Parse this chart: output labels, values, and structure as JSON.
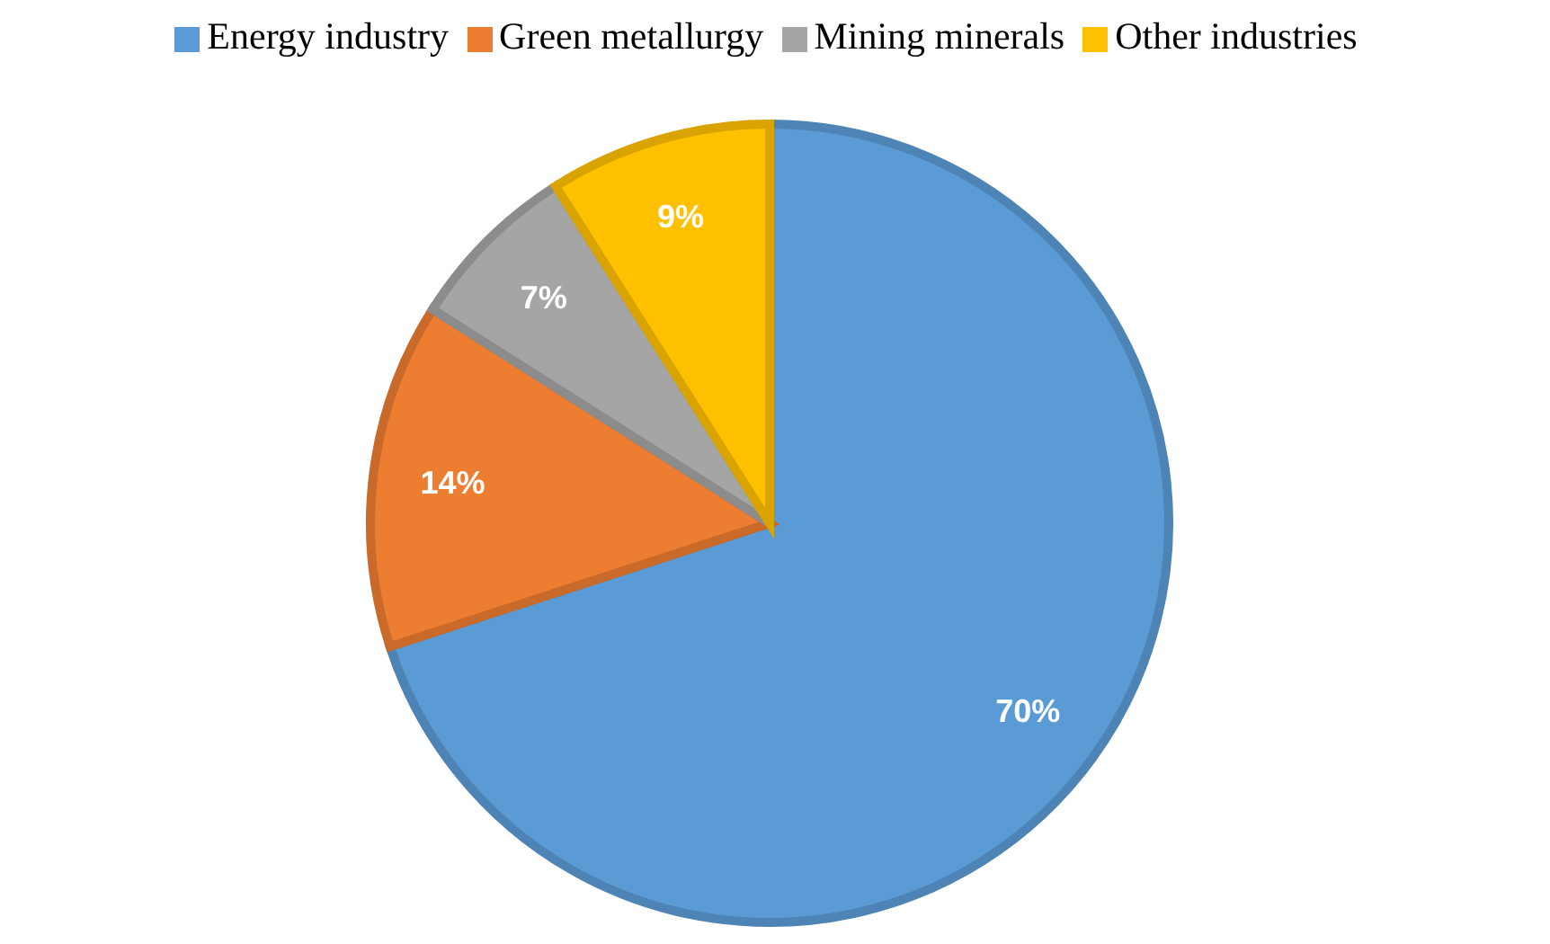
{
  "chart_data": {
    "type": "pie",
    "categories": [
      "Energy industry",
      "Green metallurgy",
      "Mining minerals",
      "Other industries"
    ],
    "values": [
      70,
      14,
      7,
      9
    ],
    "colors": [
      "#5b9bd5",
      "#ed7d31",
      "#a5a5a5",
      "#ffc000"
    ],
    "value_labels": [
      "70%",
      "14%",
      "7%",
      "9%"
    ],
    "legend": "top"
  }
}
